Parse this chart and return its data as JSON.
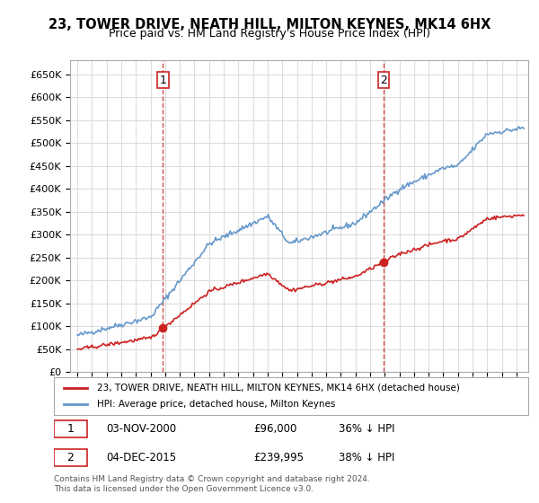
{
  "title": "23, TOWER DRIVE, NEATH HILL, MILTON KEYNES, MK14 6HX",
  "subtitle": "Price paid vs. HM Land Registry's House Price Index (HPI)",
  "ylabel_ticks": [
    "£0",
    "£50K",
    "£100K",
    "£150K",
    "£200K",
    "£250K",
    "£300K",
    "£350K",
    "£400K",
    "£450K",
    "£500K",
    "£550K",
    "£600K",
    "£650K"
  ],
  "ytick_values": [
    0,
    50000,
    100000,
    150000,
    200000,
    250000,
    300000,
    350000,
    400000,
    450000,
    500000,
    550000,
    600000,
    650000
  ],
  "hpi_color": "#6699cc",
  "price_color": "#cc2222",
  "purchase1_date": 2000.84,
  "purchase1_price": 96000,
  "purchase2_date": 2015.92,
  "purchase2_price": 239995,
  "legend_line1": "23, TOWER DRIVE, NEATH HILL, MILTON KEYNES, MK14 6HX (detached house)",
  "legend_line2": "HPI: Average price, detached house, Milton Keynes",
  "annotation1": "1    03-NOV-2000         £96,000         36% ↓ HPI",
  "annotation2": "2    04-DEC-2015         £239,995       38% ↓ HPI",
  "footer": "Contains HM Land Registry data © Crown copyright and database right 2024.\nThis data is licensed under the Open Government Licence v3.0.",
  "background_color": "#ffffff",
  "grid_color": "#dddddd"
}
